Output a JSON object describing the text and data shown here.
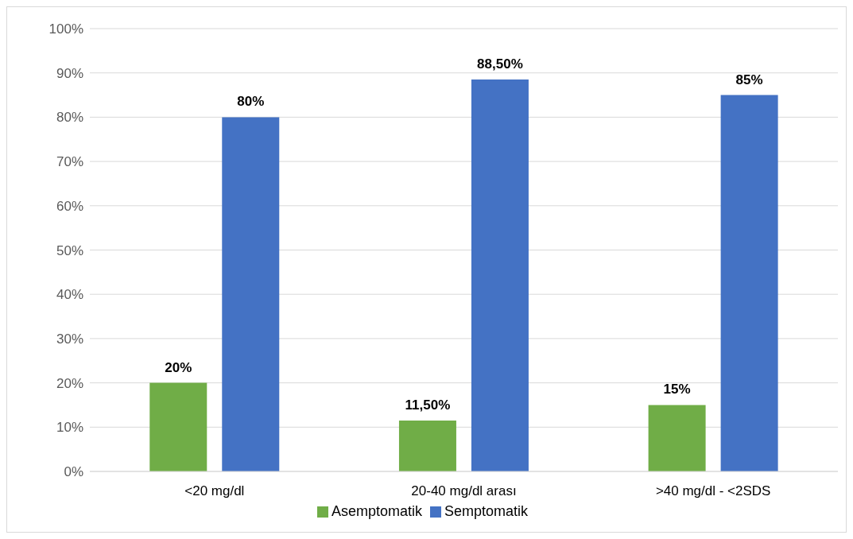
{
  "chart_data": {
    "type": "bar",
    "categories": [
      "<20 mg/dl",
      "20-40 mg/dl arası",
      ">40 mg/dl - <2SDS"
    ],
    "series": [
      {
        "name": "Asemptomatik",
        "color": "#70ad47",
        "values": [
          20,
          11.5,
          15
        ],
        "value_labels": [
          "20%",
          "11,50%",
          "15%"
        ]
      },
      {
        "name": "Semptomatik",
        "color": "#4472c4",
        "values": [
          80,
          88.5,
          85
        ],
        "value_labels": [
          "80%",
          "88,50%",
          "85%"
        ]
      }
    ],
    "ylim": [
      0,
      100
    ],
    "yticks": [
      {
        "value": 0,
        "label": "0%"
      },
      {
        "value": 10,
        "label": "10%"
      },
      {
        "value": 20,
        "label": "20%"
      },
      {
        "value": 30,
        "label": "30%"
      },
      {
        "value": 40,
        "label": "40%"
      },
      {
        "value": 50,
        "label": "50%"
      },
      {
        "value": 60,
        "label": "60%"
      },
      {
        "value": 70,
        "label": "70%"
      },
      {
        "value": 80,
        "label": "80%"
      },
      {
        "value": 90,
        "label": "90%"
      },
      {
        "value": 100,
        "label": "100%"
      }
    ],
    "grid": "y",
    "legend": "bottom"
  }
}
